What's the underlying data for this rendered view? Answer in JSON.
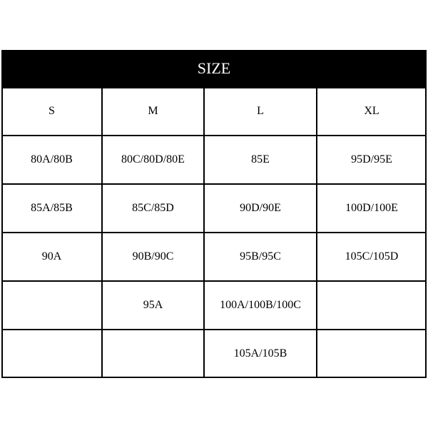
{
  "header": {
    "title": "SIZE"
  },
  "table": {
    "columns": [
      "S",
      "M",
      "L",
      "XL"
    ],
    "rows": [
      [
        "80A/80B",
        "80C/80D/80E",
        "85E",
        "95D/95E"
      ],
      [
        "85A/85B",
        "85C/85D",
        "90D/90E",
        "100D/100E"
      ],
      [
        "90A",
        "90B/90C",
        "95B/95C",
        "105C/105D"
      ],
      [
        null,
        "95A",
        "100A/100B/100C",
        null
      ],
      [
        null,
        null,
        "105A/105B",
        null
      ]
    ]
  }
}
